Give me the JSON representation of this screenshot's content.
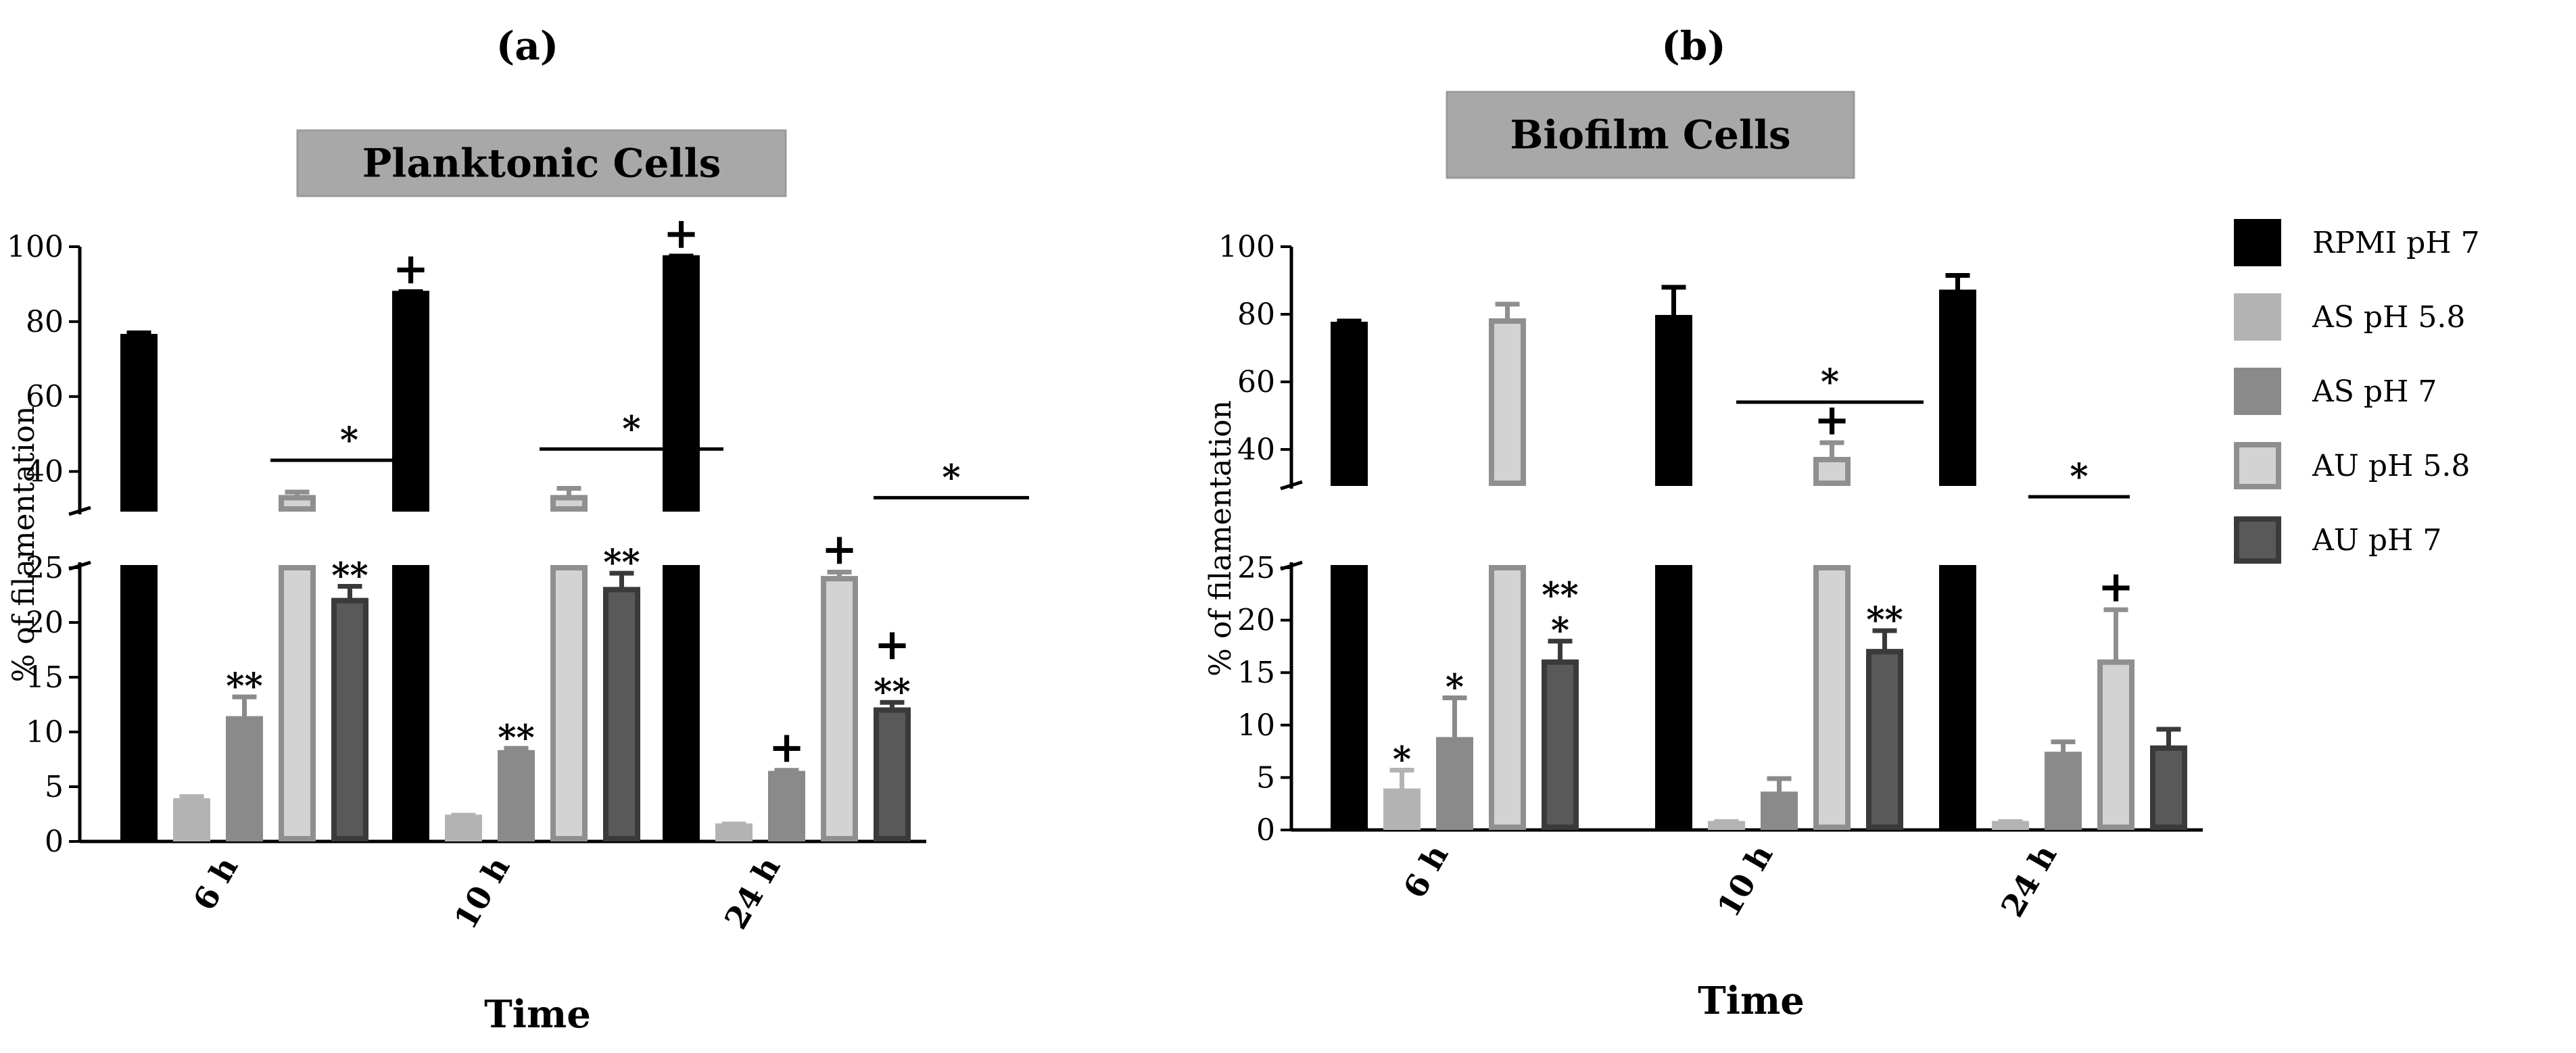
{
  "figure": {
    "legend": [
      {
        "name": "RPMI pH 7",
        "fill": "#000000",
        "stroke": "#000000"
      },
      {
        "name": "AS pH 5.8",
        "fill": "#b3b3b3",
        "stroke": "#b3b3b3"
      },
      {
        "name": "AS pH 7",
        "fill": "#8a8a8a",
        "stroke": "#8a8a8a"
      },
      {
        "name": "AU pH 5.8",
        "fill": "#d3d3d3",
        "stroke": "#8f8f8f"
      },
      {
        "name": "AU pH 7",
        "fill": "#595959",
        "stroke": "#3a3a3a"
      }
    ]
  },
  "chart_data": [
    {
      "type": "bar",
      "panel_label": "(a)",
      "title": "Planktonic Cells",
      "xlabel": "Time",
      "ylabel": "% of filamentation",
      "categories": [
        "6 h",
        "10 h",
        "24 h"
      ],
      "axis_break": {
        "lower": [
          0,
          25
        ],
        "upper": [
          30,
          100
        ]
      },
      "yticks_lower": [
        "0",
        "5",
        "10",
        "15",
        "20",
        "25"
      ],
      "yticks_upper": [
        "40",
        "60",
        "80",
        "100"
      ],
      "series": [
        {
          "name": "RPMI pH 7",
          "values": [
            76,
            87.5,
            97
          ],
          "errors": [
            1,
            0.5,
            0.5
          ]
        },
        {
          "name": "AS pH 5.8",
          "values": [
            3.7,
            2.2,
            1.4
          ],
          "errors": [
            0.4,
            0.2,
            0.2
          ]
        },
        {
          "name": "AS pH 7",
          "values": [
            11.2,
            8.1,
            6.2
          ],
          "errors": [
            2,
            0.4,
            0.3
          ]
        },
        {
          "name": "AU pH 5.8",
          "values": [
            33,
            33,
            24
          ],
          "errors": [
            1.5,
            2.5,
            0.6
          ]
        },
        {
          "name": "AU pH 7",
          "values": [
            22,
            23,
            12
          ],
          "errors": [
            1.3,
            1.5,
            0.7
          ]
        }
      ],
      "annotations": [
        {
          "category": "10 h",
          "series": "RPMI pH 7",
          "text": "+"
        },
        {
          "category": "24 h",
          "series": "RPMI pH 7",
          "text": "+"
        },
        {
          "category": "6 h",
          "series": "AS pH 7",
          "text": "**"
        },
        {
          "category": "6 h",
          "series": "AU pH 7",
          "text": "**"
        },
        {
          "category": "10 h",
          "series": "AS pH 7",
          "text": "**"
        },
        {
          "category": "10 h",
          "series": "AU pH 7",
          "text": "**"
        },
        {
          "category": "24 h",
          "series": "AS pH 7",
          "text": "+"
        },
        {
          "category": "24 h",
          "series": "AU pH 5.8",
          "text": "+"
        },
        {
          "category": "24 h",
          "series": "AU pH 7",
          "text": "**"
        },
        {
          "category": "24 h",
          "series": "AU pH 7",
          "text": "+"
        }
      ],
      "significance_lines": [
        {
          "category": "6 h",
          "text": "*",
          "value": 43
        },
        {
          "category": "10 h",
          "text": "*",
          "value": 46
        },
        {
          "category": "24 h",
          "text": "*",
          "value": 33
        }
      ]
    },
    {
      "type": "bar",
      "panel_label": "(b)",
      "title": "Biofilm Cells",
      "xlabel": "Time",
      "ylabel": "% of filamentation",
      "categories": [
        "6 h",
        "10 h",
        "24 h"
      ],
      "axis_break": {
        "lower": [
          0,
          25
        ],
        "upper": [
          30,
          100
        ]
      },
      "yticks_lower": [
        "0",
        "5",
        "10",
        "15",
        "20",
        "25"
      ],
      "yticks_upper": [
        "40",
        "60",
        "80",
        "100"
      ],
      "series": [
        {
          "name": "RPMI pH 7",
          "values": [
            77,
            79,
            86.5
          ],
          "errors": [
            1,
            9,
            5
          ]
        },
        {
          "name": "AS pH 5.8",
          "values": [
            3.7,
            0.6,
            0.6
          ],
          "errors": [
            2,
            0.2,
            0.2
          ]
        },
        {
          "name": "AS pH 7",
          "values": [
            8.6,
            3.4,
            7.2
          ],
          "errors": [
            4,
            1.5,
            1.2
          ]
        },
        {
          "name": "AU pH 5.8",
          "values": [
            78,
            37,
            16
          ],
          "errors": [
            5,
            5,
            5
          ]
        },
        {
          "name": "AU pH 7",
          "values": [
            16,
            17,
            7.8
          ],
          "errors": [
            2,
            2,
            1.8
          ]
        }
      ],
      "annotations": [
        {
          "category": "6 h",
          "series": "AS pH 5.8",
          "text": "*"
        },
        {
          "category": "6 h",
          "series": "AS pH 7",
          "text": "*"
        },
        {
          "category": "6 h",
          "series": "AU pH 7",
          "text": "*"
        },
        {
          "category": "6 h",
          "series": "AU pH 7",
          "text": "**"
        },
        {
          "category": "10 h",
          "series": "AU pH 5.8",
          "text": "+"
        },
        {
          "category": "10 h",
          "series": "AU pH 7",
          "text": "**"
        },
        {
          "category": "24 h",
          "series": "AU pH 5.8",
          "text": "+"
        }
      ],
      "significance_lines": [
        {
          "category": "10 h",
          "text": "*",
          "value": 54
        },
        {
          "category": "24 h",
          "text": "*",
          "value": 26
        }
      ]
    }
  ]
}
